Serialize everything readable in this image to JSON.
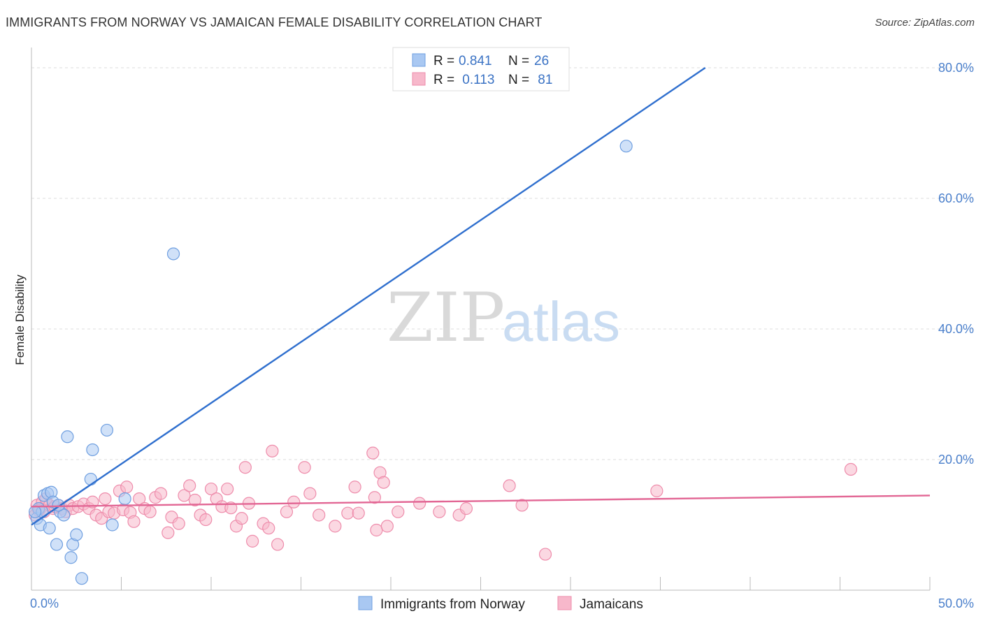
{
  "header": {
    "title": "IMMIGRANTS FROM NORWAY VS JAMAICAN FEMALE DISABILITY CORRELATION CHART",
    "source": "Source: ZipAtlas.com"
  },
  "watermark": {
    "zip": "ZIP",
    "atlas": "atlas"
  },
  "colors": {
    "norway_fill": "#a9c8f2",
    "norway_stroke": "#6f9fe0",
    "norway_line": "#2f6fce",
    "jamaica_fill": "#f7b8cb",
    "jamaica_stroke": "#ee8cab",
    "jamaica_line": "#e26694",
    "tick_color": "#4a7fcb",
    "grid": "#dddddd"
  },
  "chart_data": {
    "type": "scatter",
    "title": "IMMIGRANTS FROM NORWAY VS JAMAICAN FEMALE DISABILITY CORRELATION CHART",
    "xlabel": "",
    "ylabel": "Female Disability",
    "xlim": [
      0,
      50
    ],
    "ylim": [
      0,
      82
    ],
    "x_tick_labels": [
      "0.0%",
      "50.0%"
    ],
    "y_ticks": [
      20,
      40,
      60,
      80
    ],
    "y_tick_labels": [
      "20.0%",
      "40.0%",
      "60.0%",
      "80.0%"
    ],
    "grid": true,
    "legend": {
      "position": "top-center",
      "entries": [
        {
          "r_label": "R =",
          "r_value": "0.841",
          "n_label": "N =",
          "n_value": "26"
        },
        {
          "r_label": "R =",
          "r_value": " 0.113",
          "n_label": "N =",
          "n_value": " 81"
        }
      ]
    },
    "series": [
      {
        "name": "Immigrants from Norway",
        "trend": {
          "x": [
            0.0,
            37.5
          ],
          "y": [
            10.0,
            80.0
          ]
        },
        "points": [
          [
            0.3,
            11.0
          ],
          [
            0.4,
            12.5
          ],
          [
            0.5,
            10.0
          ],
          [
            0.6,
            12.0
          ],
          [
            0.7,
            14.5
          ],
          [
            0.9,
            14.8
          ],
          [
            1.0,
            9.5
          ],
          [
            1.1,
            15.0
          ],
          [
            1.2,
            13.5
          ],
          [
            1.4,
            7.0
          ],
          [
            1.6,
            12.0
          ],
          [
            1.8,
            11.5
          ],
          [
            2.0,
            23.5
          ],
          [
            2.2,
            5.0
          ],
          [
            2.3,
            7.0
          ],
          [
            2.5,
            8.5
          ],
          [
            2.8,
            1.8
          ],
          [
            3.3,
            17.0
          ],
          [
            3.4,
            21.5
          ],
          [
            4.2,
            24.5
          ],
          [
            4.5,
            10.0
          ],
          [
            5.2,
            14.0
          ],
          [
            7.9,
            51.5
          ],
          [
            33.1,
            68.0
          ],
          [
            0.2,
            12.0
          ],
          [
            1.5,
            13.0
          ]
        ]
      },
      {
        "name": "Jamaicans",
        "trend": {
          "x": [
            0.0,
            50.0
          ],
          "y": [
            12.8,
            14.5
          ]
        },
        "points": [
          [
            0.2,
            11.5
          ],
          [
            0.3,
            13.0
          ],
          [
            0.5,
            12.5
          ],
          [
            0.6,
            13.5
          ],
          [
            0.7,
            12.0
          ],
          [
            0.8,
            14.0
          ],
          [
            1.0,
            13.0
          ],
          [
            1.2,
            12.5
          ],
          [
            1.5,
            13.0
          ],
          [
            1.7,
            12.5
          ],
          [
            1.9,
            12.0
          ],
          [
            2.1,
            13.0
          ],
          [
            2.3,
            12.5
          ],
          [
            2.6,
            12.8
          ],
          [
            2.9,
            13.2
          ],
          [
            3.2,
            12.5
          ],
          [
            3.4,
            13.5
          ],
          [
            3.6,
            11.5
          ],
          [
            3.9,
            11.0
          ],
          [
            4.1,
            14.0
          ],
          [
            4.3,
            12.0
          ],
          [
            4.6,
            11.8
          ],
          [
            4.9,
            15.2
          ],
          [
            5.1,
            12.3
          ],
          [
            5.3,
            15.8
          ],
          [
            5.5,
            11.9
          ],
          [
            5.7,
            10.5
          ],
          [
            6.0,
            14.0
          ],
          [
            6.3,
            12.5
          ],
          [
            6.6,
            12.0
          ],
          [
            6.9,
            14.2
          ],
          [
            7.2,
            14.8
          ],
          [
            7.6,
            8.8
          ],
          [
            7.8,
            11.2
          ],
          [
            8.2,
            10.2
          ],
          [
            8.5,
            14.5
          ],
          [
            8.8,
            16.0
          ],
          [
            9.1,
            13.8
          ],
          [
            9.4,
            11.5
          ],
          [
            9.7,
            10.8
          ],
          [
            10.0,
            15.5
          ],
          [
            10.3,
            14.0
          ],
          [
            10.6,
            12.8
          ],
          [
            10.9,
            15.5
          ],
          [
            11.1,
            12.6
          ],
          [
            11.4,
            9.8
          ],
          [
            11.7,
            11.0
          ],
          [
            11.9,
            18.8
          ],
          [
            12.1,
            13.3
          ],
          [
            12.3,
            7.5
          ],
          [
            12.9,
            10.2
          ],
          [
            13.2,
            9.5
          ],
          [
            13.4,
            21.3
          ],
          [
            13.7,
            7.0
          ],
          [
            14.2,
            12.0
          ],
          [
            14.6,
            13.5
          ],
          [
            15.2,
            18.8
          ],
          [
            15.5,
            14.8
          ],
          [
            16.0,
            11.5
          ],
          [
            16.9,
            9.8
          ],
          [
            17.6,
            11.8
          ],
          [
            18.0,
            15.8
          ],
          [
            18.2,
            11.8
          ],
          [
            19.1,
            14.2
          ],
          [
            19.2,
            9.2
          ],
          [
            19.4,
            18.0
          ],
          [
            19.6,
            16.5
          ],
          [
            19.8,
            9.8
          ],
          [
            20.4,
            12.0
          ],
          [
            21.6,
            13.3
          ],
          [
            22.7,
            12.0
          ],
          [
            23.8,
            11.5
          ],
          [
            24.2,
            12.5
          ],
          [
            26.6,
            16.0
          ],
          [
            27.3,
            13.0
          ],
          [
            28.6,
            5.5
          ],
          [
            34.8,
            15.2
          ],
          [
            45.6,
            18.5
          ],
          [
            19.0,
            21.0
          ],
          [
            0.4,
            12.2
          ],
          [
            1.3,
            12.8
          ]
        ]
      }
    ]
  },
  "bottom_legend": {
    "items": [
      {
        "label": "Immigrants from Norway"
      },
      {
        "label": "Jamaicans"
      }
    ]
  }
}
